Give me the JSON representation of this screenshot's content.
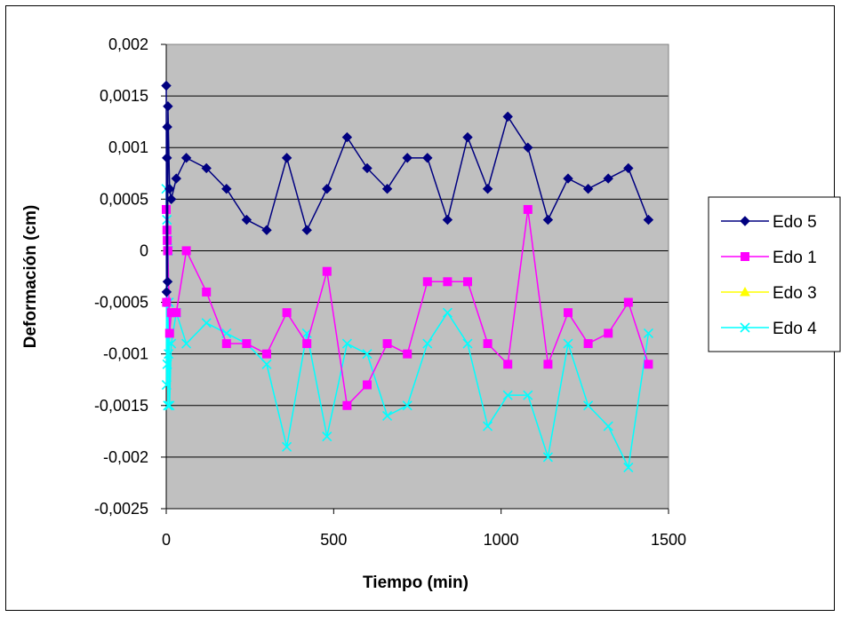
{
  "chart_data": {
    "type": "scatter",
    "title": "",
    "xlabel": "Tiempo (min)",
    "ylabel": "Deformación (cm)",
    "xlim": [
      0,
      1500
    ],
    "ylim": [
      -0.0025,
      0.002
    ],
    "x_ticks": [
      {
        "value": 0,
        "label": "0"
      },
      {
        "value": 500,
        "label": "500"
      },
      {
        "value": 1000,
        "label": "1000"
      },
      {
        "value": 1500,
        "label": "1500"
      }
    ],
    "y_ticks": [
      {
        "value": 0.002,
        "label": "0,002"
      },
      {
        "value": 0.0015,
        "label": "0,0015"
      },
      {
        "value": 0.001,
        "label": "0,001"
      },
      {
        "value": 0.0005,
        "label": "0,0005"
      },
      {
        "value": 0,
        "label": "0"
      },
      {
        "value": -0.0005,
        "label": "-0,0005"
      },
      {
        "value": -0.001,
        "label": "-0,001"
      },
      {
        "value": -0.0015,
        "label": "-0,0015"
      },
      {
        "value": -0.002,
        "label": "-0,002"
      },
      {
        "value": -0.0025,
        "label": "-0,0025"
      }
    ],
    "grid": "horizontal",
    "plot_background": "#c0c0c0",
    "legend_position": "right",
    "series": [
      {
        "name": "Edo 5",
        "color": "#000080",
        "marker": "diamond",
        "points": [
          [
            0,
            0.0016
          ],
          [
            1,
            -0.0004
          ],
          [
            2,
            0.0009
          ],
          [
            3,
            0.0012
          ],
          [
            4,
            -0.0003
          ],
          [
            5,
            0.0014
          ],
          [
            10,
            0.0006
          ],
          [
            15,
            0.0005
          ],
          [
            30,
            0.0007
          ],
          [
            60,
            0.0009
          ],
          [
            120,
            0.0008
          ],
          [
            180,
            0.0006
          ],
          [
            240,
            0.0003
          ],
          [
            300,
            0.0002
          ],
          [
            360,
            0.0009
          ],
          [
            420,
            0.0002
          ],
          [
            480,
            0.0006
          ],
          [
            540,
            0.0011
          ],
          [
            600,
            0.0008
          ],
          [
            660,
            0.0006
          ],
          [
            720,
            0.0009
          ],
          [
            780,
            0.0009
          ],
          [
            840,
            0.0003
          ],
          [
            900,
            0.0011
          ],
          [
            960,
            0.0006
          ],
          [
            1020,
            0.0013
          ],
          [
            1080,
            0.001
          ],
          [
            1140,
            0.0003
          ],
          [
            1200,
            0.0007
          ],
          [
            1260,
            0.0006
          ],
          [
            1320,
            0.0007
          ],
          [
            1380,
            0.0008
          ],
          [
            1440,
            0.0003
          ]
        ]
      },
      {
        "name": "Edo 1",
        "color": "#ff00ff",
        "marker": "square",
        "points": [
          [
            0,
            0.0004
          ],
          [
            1,
            -0.0005
          ],
          [
            2,
            0.0002
          ],
          [
            3,
            0.0001
          ],
          [
            4,
            0.0
          ],
          [
            5,
            0.0
          ],
          [
            10,
            -0.0008
          ],
          [
            15,
            -0.0006
          ],
          [
            30,
            -0.0006
          ],
          [
            60,
            0.0
          ],
          [
            120,
            -0.0004
          ],
          [
            180,
            -0.0009
          ],
          [
            240,
            -0.0009
          ],
          [
            300,
            -0.001
          ],
          [
            360,
            -0.0006
          ],
          [
            420,
            -0.0009
          ],
          [
            480,
            -0.0002
          ],
          [
            540,
            -0.0015
          ],
          [
            600,
            -0.0013
          ],
          [
            660,
            -0.0009
          ],
          [
            720,
            -0.001
          ],
          [
            780,
            -0.0003
          ],
          [
            840,
            -0.0003
          ],
          [
            900,
            -0.0003
          ],
          [
            960,
            -0.0009
          ],
          [
            1020,
            -0.0011
          ],
          [
            1080,
            0.0004
          ],
          [
            1140,
            -0.0011
          ],
          [
            1200,
            -0.0006
          ],
          [
            1260,
            -0.0009
          ],
          [
            1320,
            -0.0008
          ],
          [
            1380,
            -0.0005
          ],
          [
            1440,
            -0.0011
          ]
        ]
      },
      {
        "name": "Edo 3",
        "color": "#ffff00",
        "marker": "triangle",
        "points": []
      },
      {
        "name": "Edo 4",
        "color": "#00ffff",
        "marker": "x",
        "points": [
          [
            0,
            0.0006
          ],
          [
            1,
            -0.0013
          ],
          [
            2,
            0.0003
          ],
          [
            3,
            -0.0011
          ],
          [
            4,
            0.0001
          ],
          [
            5,
            -0.0015
          ],
          [
            6,
            0.0
          ],
          [
            7,
            -0.001
          ],
          [
            8,
            -0.0005
          ],
          [
            10,
            -0.0015
          ],
          [
            15,
            -0.0009
          ],
          [
            30,
            -0.0006
          ],
          [
            60,
            -0.0009
          ],
          [
            120,
            -0.0007
          ],
          [
            180,
            -0.0008
          ],
          [
            240,
            -0.0009
          ],
          [
            300,
            -0.0011
          ],
          [
            360,
            -0.0019
          ],
          [
            420,
            -0.0008
          ],
          [
            480,
            -0.0018
          ],
          [
            540,
            -0.0009
          ],
          [
            600,
            -0.001
          ],
          [
            660,
            -0.0016
          ],
          [
            720,
            -0.0015
          ],
          [
            780,
            -0.0009
          ],
          [
            840,
            -0.0006
          ],
          [
            900,
            -0.0009
          ],
          [
            960,
            -0.0017
          ],
          [
            1020,
            -0.0014
          ],
          [
            1080,
            -0.0014
          ],
          [
            1140,
            -0.002
          ],
          [
            1200,
            -0.0009
          ],
          [
            1260,
            -0.0015
          ],
          [
            1320,
            -0.0017
          ],
          [
            1380,
            -0.0021
          ],
          [
            1440,
            -0.0008
          ]
        ]
      }
    ]
  }
}
